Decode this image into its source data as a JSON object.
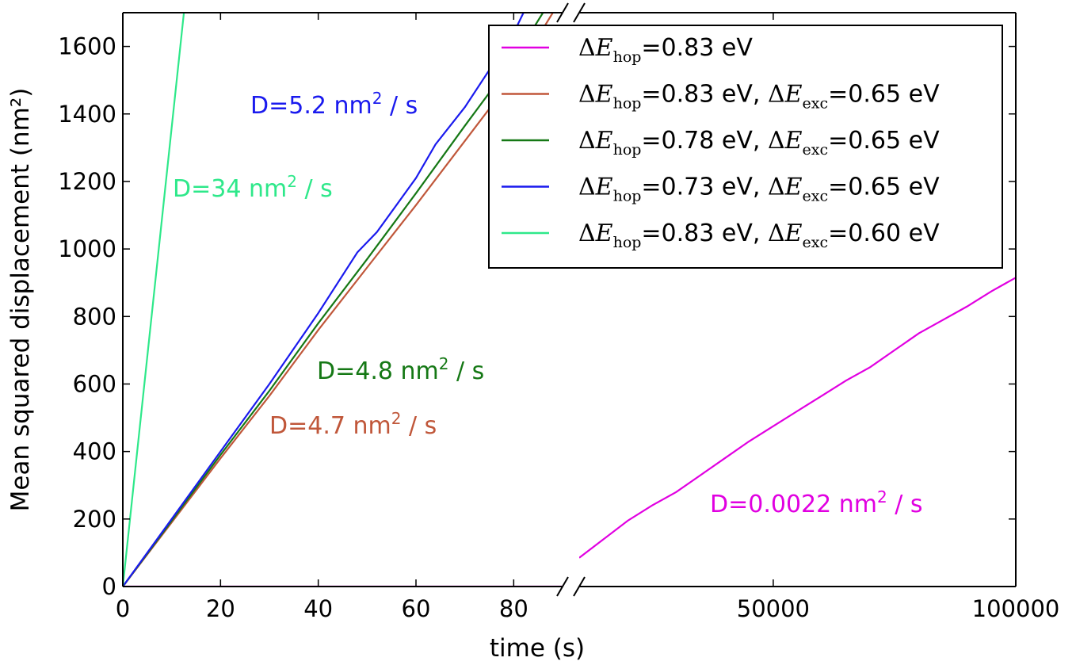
{
  "chart_data": {
    "type": "line",
    "xlabel": "time (s)",
    "ylabel": "Mean squared displacement (nm²)",
    "ylim": [
      0,
      1700
    ],
    "y_ticks": [
      "0",
      "200",
      "400",
      "600",
      "800",
      "1000",
      "1200",
      "1400",
      "1600"
    ],
    "broken_x_axis": true,
    "left_panel": {
      "xlim": [
        0,
        90
      ],
      "x_ticks": [
        "0",
        "20",
        "40",
        "60",
        "80"
      ]
    },
    "right_panel": {
      "xlim": [
        10000,
        100000
      ],
      "x_ticks": [
        "50000",
        "100000"
      ]
    },
    "legend_placement": "top-right",
    "series": [
      {
        "name": "ΔE_hop=0.83 eV",
        "legend_parts": {
          "a": "Δ",
          "b": "E",
          "sub1": "hop",
          "c": "=0.83 eV"
        },
        "color": "#e100e1",
        "panel": "right",
        "x": [
          10000,
          15000,
          20000,
          25000,
          30000,
          35000,
          40000,
          45000,
          50000,
          55000,
          60000,
          65000,
          70000,
          75000,
          80000,
          85000,
          90000,
          95000,
          100000
        ],
        "y": [
          85,
          140,
          195,
          240,
          280,
          330,
          380,
          430,
          475,
          520,
          565,
          610,
          650,
          700,
          750,
          790,
          830,
          875,
          915
        ],
        "left_panel_note": "flat near 0 over 0–90 s"
      },
      {
        "name": "ΔE_hop=0.83 eV, ΔE_exc=0.65 eV",
        "legend_parts": {
          "a": "Δ",
          "b": "E",
          "sub1": "hop",
          "c": "=0.83 eV, ",
          "d": "Δ",
          "e": "E",
          "sub2": "exc",
          "f": "=0.65 eV"
        },
        "color": "#c0573a",
        "panel": "left",
        "x": [
          0,
          10,
          20,
          30,
          40,
          50,
          60,
          70,
          80,
          88
        ],
        "y": [
          0,
          190,
          380,
          565,
          760,
          945,
          1130,
          1320,
          1510,
          1700
        ]
      },
      {
        "name": "ΔE_hop=0.78 eV, ΔE_exc=0.65 eV",
        "legend_parts": {
          "a": "Δ",
          "b": "E",
          "sub1": "hop",
          "c": "=0.78 eV, ",
          "d": "Δ",
          "e": "E",
          "sub2": "exc",
          "f": "=0.65 eV"
        },
        "color": "#157815",
        "panel": "left",
        "x": [
          0,
          10,
          20,
          30,
          40,
          50,
          60,
          70,
          80,
          86
        ],
        "y": [
          0,
          195,
          390,
          580,
          780,
          970,
          1165,
          1365,
          1560,
          1700
        ]
      },
      {
        "name": "ΔE_hop=0.73 eV, ΔE_exc=0.65 eV",
        "legend_parts": {
          "a": "Δ",
          "b": "E",
          "sub1": "hop",
          "c": "=0.73 eV, ",
          "d": "Δ",
          "e": "E",
          "sub2": "exc",
          "f": "=0.65 eV"
        },
        "color": "#1a1aee",
        "panel": "left",
        "x": [
          0,
          10,
          20,
          30,
          40,
          48,
          52,
          60,
          64,
          70,
          80,
          82
        ],
        "y": [
          0,
          200,
          400,
          600,
          810,
          990,
          1050,
          1210,
          1310,
          1420,
          1640,
          1700
        ]
      },
      {
        "name": "ΔE_hop=0.83 eV, ΔE_exc=0.60 eV",
        "legend_parts": {
          "a": "Δ",
          "b": "E",
          "sub1": "hop",
          "c": "=0.83 eV, ",
          "d": "Δ",
          "e": "E",
          "sub2": "exc",
          "f": "=0.60 eV"
        },
        "color": "#2ee88a",
        "panel": "left",
        "x": [
          0,
          12.5
        ],
        "y": [
          0,
          1700
        ]
      }
    ],
    "annotations": [
      {
        "pre": "D=5.2 nm",
        "sup": "2",
        "post": " / s",
        "color": "#1a1aee"
      },
      {
        "pre": "D=34 nm",
        "sup": "2",
        "post": " / s",
        "color": "#2ee88a"
      },
      {
        "pre": "D=4.8 nm",
        "sup": "2",
        "post": " / s",
        "color": "#157815"
      },
      {
        "pre": "D=4.7 nm",
        "sup": "2",
        "post": " / s",
        "color": "#c0573a"
      },
      {
        "pre": "D=0.0022 nm",
        "sup": "2",
        "post": " / s",
        "color": "#e100e1"
      }
    ]
  }
}
